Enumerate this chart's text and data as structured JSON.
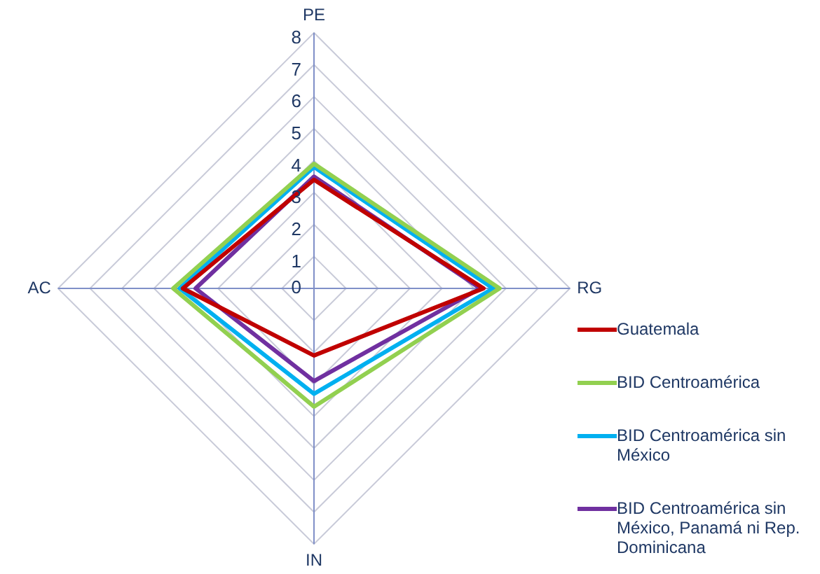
{
  "chart_data": {
    "type": "radar",
    "categories": [
      "PE",
      "RG",
      "IN",
      "AC"
    ],
    "series": [
      {
        "name": "Guatemala",
        "color": "#c00000",
        "values": [
          3.4,
          5.3,
          2.1,
          4.1
        ]
      },
      {
        "name": "BID Centroamérica",
        "color": "#92d050",
        "values": [
          3.9,
          5.8,
          3.7,
          4.4
        ]
      },
      {
        "name": "BID Centroamérica sin México",
        "color": "#00b0f0",
        "values": [
          3.8,
          5.6,
          3.3,
          4.2
        ]
      },
      {
        "name": "BID Centroamérica sin México, Panamá ni Rep. Dominicana",
        "color": "#7030a0",
        "values": [
          3.5,
          5.2,
          2.9,
          3.7
        ]
      }
    ],
    "ylim": [
      0,
      8
    ],
    "yticks": [
      0,
      1,
      2,
      3,
      4,
      5,
      6,
      7,
      8
    ],
    "grid": true,
    "legend": "right",
    "marker": "none"
  }
}
